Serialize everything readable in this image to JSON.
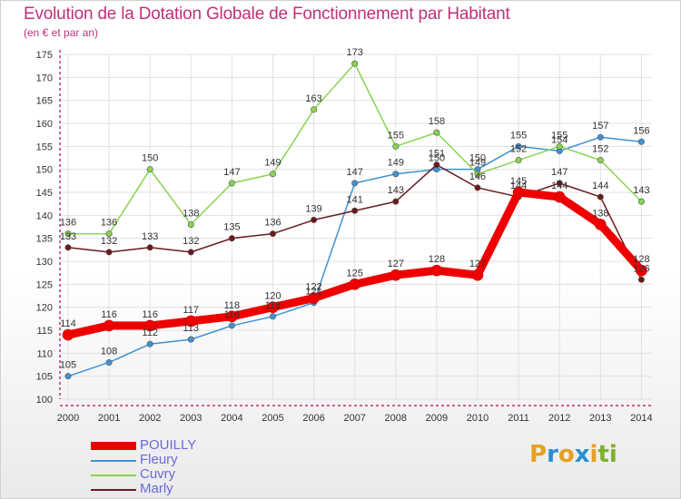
{
  "title": "Evolution de la Dotation Globale de Fonctionnement par Habitant",
  "subtitle": "(en € et par an)",
  "colors": {
    "title": "#c0307a",
    "axis": "#c0307a",
    "grid": "#e0e0e0",
    "legend_text": "#6a6ad8"
  },
  "logo": {
    "letters": [
      "P",
      "r",
      "o",
      "x",
      "i",
      "t",
      "i"
    ],
    "colors": [
      "#e8a020",
      "#2a8fd0",
      "#e8a020",
      "#2a8fd0",
      "#e8a020",
      "#80b030",
      "#80b030"
    ]
  },
  "chart_data": {
    "type": "line",
    "x": [
      2000,
      2001,
      2002,
      2003,
      2004,
      2005,
      2006,
      2007,
      2008,
      2009,
      2010,
      2011,
      2012,
      2013,
      2014
    ],
    "ylim": [
      100,
      175
    ],
    "yticks": [
      100,
      105,
      110,
      115,
      120,
      125,
      130,
      135,
      140,
      145,
      150,
      155,
      160,
      165,
      170,
      175
    ],
    "grid": true,
    "legend_position": "bottom-left",
    "series": [
      {
        "name": "POUILLY",
        "color": "#ee0000",
        "width": 9,
        "values": [
          114,
          116,
          116,
          117,
          118,
          120,
          122,
          125,
          127,
          128,
          127,
          145,
          144,
          138,
          128
        ]
      },
      {
        "name": "Fleury",
        "color": "#3f92d2",
        "width": 1.5,
        "values": [
          105,
          108,
          112,
          113,
          116,
          118,
          121,
          147,
          149,
          150,
          150,
          155,
          154,
          157,
          156
        ]
      },
      {
        "name": "Cuvry",
        "color": "#88d450",
        "width": 1.5,
        "values": [
          136,
          136,
          150,
          138,
          147,
          149,
          163,
          173,
          155,
          158,
          149,
          152,
          155,
          152,
          143
        ]
      },
      {
        "name": "Marly",
        "color": "#6b1a1a",
        "width": 1.5,
        "values": [
          133,
          132,
          133,
          132,
          135,
          136,
          139,
          141,
          143,
          151,
          146,
          144,
          147,
          144,
          126
        ]
      }
    ]
  }
}
